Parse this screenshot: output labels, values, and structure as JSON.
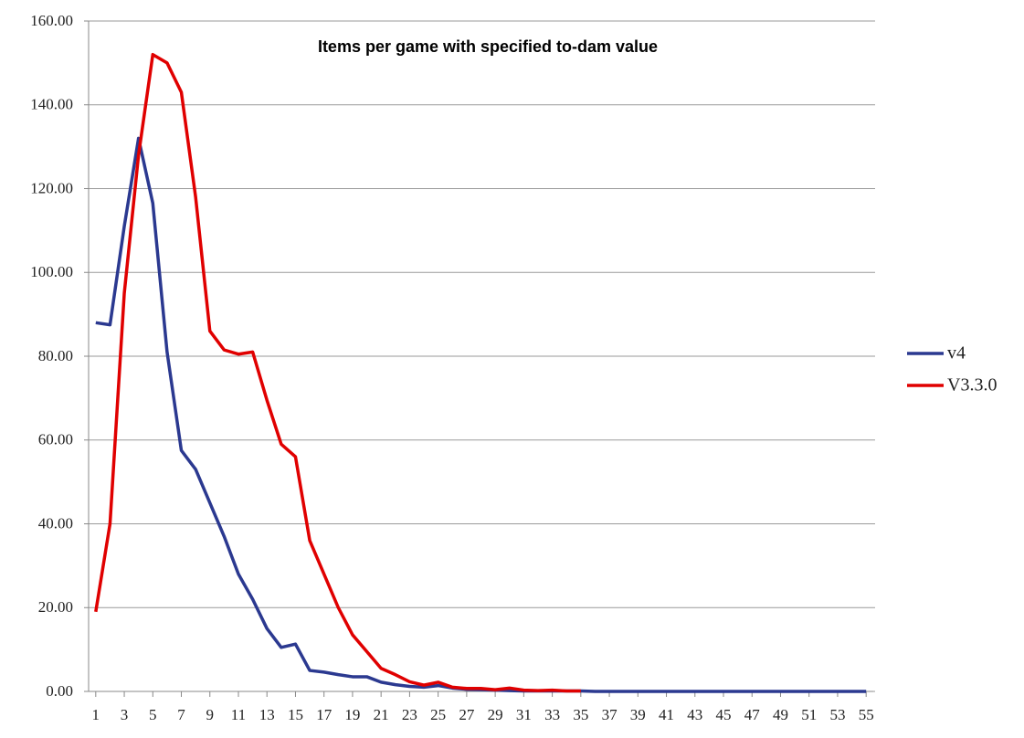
{
  "chart_data": {
    "type": "line",
    "title": "Items per game with specified to-dam value",
    "x": [
      1,
      2,
      3,
      4,
      5,
      6,
      7,
      8,
      9,
      10,
      11,
      12,
      13,
      14,
      15,
      16,
      17,
      18,
      19,
      20,
      21,
      22,
      23,
      24,
      25,
      26,
      27,
      28,
      29,
      30,
      31,
      32,
      33,
      34,
      35,
      36,
      37,
      38,
      39,
      40,
      41,
      42,
      43,
      44,
      45,
      46,
      47,
      48,
      49,
      50,
      51,
      52,
      53,
      54,
      55
    ],
    "xlim": [
      0.5,
      55.5
    ],
    "xticks": [
      1,
      3,
      5,
      7,
      9,
      11,
      13,
      15,
      17,
      19,
      21,
      23,
      25,
      27,
      29,
      31,
      33,
      35,
      37,
      39,
      41,
      43,
      45,
      47,
      49,
      51,
      53,
      55
    ],
    "ylim": [
      0,
      160
    ],
    "yticks": [
      {
        "value": 0,
        "label": "0.00"
      },
      {
        "value": 20,
        "label": "20.00"
      },
      {
        "value": 40,
        "label": "40.00"
      },
      {
        "value": 60,
        "label": "60.00"
      },
      {
        "value": 80,
        "label": "80.00"
      },
      {
        "value": 100,
        "label": "100.00"
      },
      {
        "value": 120,
        "label": "120.00"
      },
      {
        "value": 140,
        "label": "140.00"
      },
      {
        "value": 160,
        "label": "160.00"
      }
    ],
    "grid": true,
    "legend": "right",
    "series": [
      {
        "name": "v4",
        "color": "#2b3990",
        "values": [
          88,
          87.5,
          111,
          132,
          116.5,
          81,
          57.5,
          53,
          45,
          37,
          28,
          22,
          15,
          10.5,
          11.3,
          5,
          4.6,
          4,
          3.5,
          3.5,
          2.2,
          1.6,
          1.2,
          1,
          1.4,
          0.8,
          0.5,
          0.4,
          0.3,
          0.2,
          0.1,
          0.1,
          0.1,
          0.1,
          0.1,
          0,
          0,
          0,
          0,
          0,
          0,
          0,
          0,
          0,
          0,
          0,
          0,
          0,
          0,
          0,
          0,
          0,
          0,
          0,
          0
        ]
      },
      {
        "name": "V3.3.0",
        "color": "#e00000",
        "values": [
          19,
          40,
          95,
          128,
          152,
          150,
          143,
          118,
          86,
          81.5,
          80.5,
          81,
          69.5,
          59,
          56,
          36,
          28,
          20,
          13.5,
          9.5,
          5.5,
          4,
          2.3,
          1.5,
          2.2,
          1,
          0.7,
          0.7,
          0.4,
          0.8,
          0.3,
          0.2,
          0.3,
          0.1,
          0.1,
          null,
          null,
          null,
          null,
          null,
          null,
          null,
          null,
          null,
          null,
          null,
          null,
          null,
          null,
          null,
          null,
          null,
          null,
          null,
          null
        ]
      }
    ]
  }
}
